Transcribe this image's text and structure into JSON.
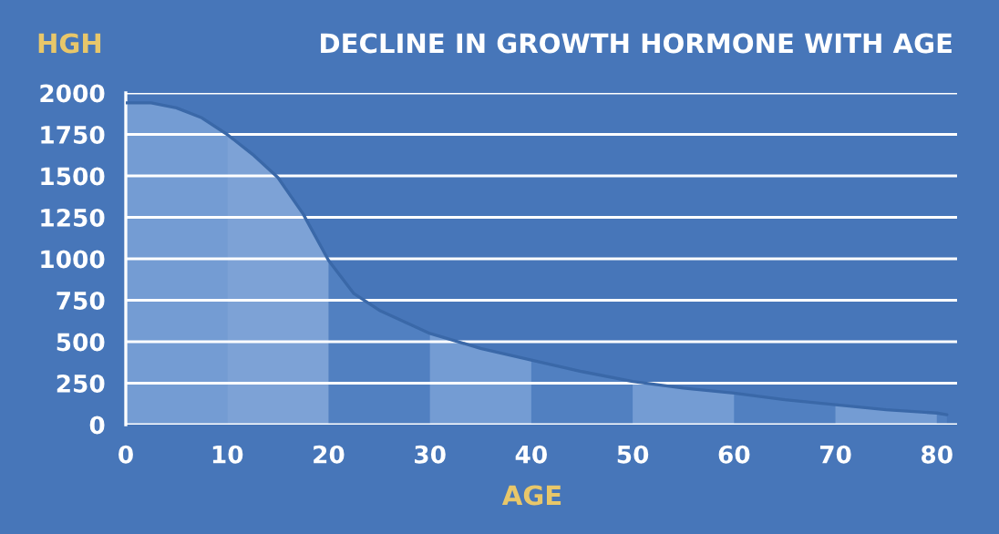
{
  "chart_data": {
    "type": "area",
    "title": "DECLINE IN GROWTH HORMONE WITH AGE",
    "xlabel": "AGE",
    "ylabel": "HGH",
    "series": [
      {
        "color": "#5a88c8",
        "x": [
          0,
          2.5,
          5,
          7.5,
          10,
          12.5,
          15,
          17.5,
          20,
          22.5,
          25,
          30,
          35,
          40,
          45,
          50,
          55,
          60,
          65,
          70,
          75,
          80,
          81
        ],
        "values": [
          1940,
          1940,
          1910,
          1850,
          1750,
          1630,
          1490,
          1270,
          990,
          790,
          690,
          550,
          460,
          390,
          320,
          260,
          220,
          190,
          150,
          120,
          90,
          70,
          60
        ]
      }
    ],
    "bands": [
      {
        "axis": "x",
        "from": 0,
        "to": 10,
        "color": "#a7c3ea"
      },
      {
        "axis": "x",
        "from": 10,
        "to": 20,
        "color": "#c2d6f2"
      },
      {
        "axis": "x",
        "from": 30,
        "to": 40,
        "color": "#a7c3ea"
      },
      {
        "axis": "x",
        "from": 50,
        "to": 60,
        "color": "#a7c3ea"
      },
      {
        "axis": "x",
        "from": 70,
        "to": 80,
        "color": "#a7c3ea"
      }
    ],
    "xlim": [
      0,
      82
    ],
    "ylim": [
      0,
      2000
    ],
    "xticks": [
      0,
      10,
      20,
      30,
      40,
      50,
      60,
      70,
      80
    ],
    "yticks": [
      0,
      250,
      500,
      750,
      1000,
      1250,
      1500,
      1750,
      2000
    ],
    "grid": "y"
  }
}
